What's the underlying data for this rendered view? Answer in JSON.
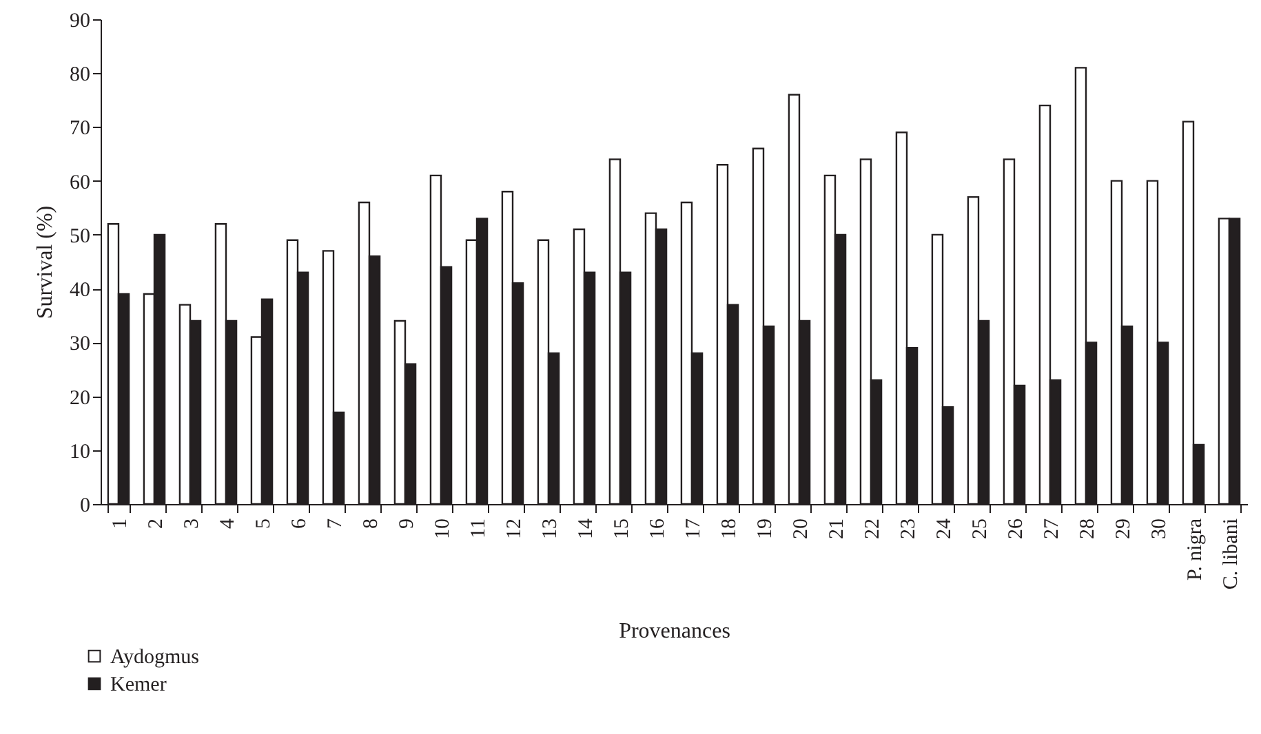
{
  "chart_data": {
    "type": "bar",
    "xlabel": "Provenances",
    "ylabel": "Survival (%)",
    "categories": [
      "1",
      "2",
      "3",
      "4",
      "5",
      "6",
      "7",
      "8",
      "9",
      "10",
      "11",
      "12",
      "13",
      "14",
      "15",
      "16",
      "17",
      "18",
      "19",
      "20",
      "21",
      "22",
      "23",
      "24",
      "25",
      "26",
      "27",
      "28",
      "29",
      "30",
      "P. nigra",
      "C. libani"
    ],
    "series": [
      {
        "name": "Aydogmus",
        "color": "#ffffff",
        "values": [
          52,
          39,
          37,
          52,
          31,
          49,
          47,
          56,
          34,
          61,
          49,
          58,
          49,
          51,
          64,
          54,
          56,
          63,
          66,
          76,
          61,
          64,
          69,
          50,
          57,
          64,
          74,
          81,
          60,
          60,
          71,
          53
        ]
      },
      {
        "name": "Kemer",
        "color": "#231f20",
        "values": [
          39,
          50,
          34,
          34,
          38,
          43,
          17,
          46,
          26,
          44,
          53,
          41,
          28,
          43,
          43,
          51,
          28,
          37,
          33,
          34,
          50,
          23,
          29,
          18,
          34,
          22,
          23,
          30,
          33,
          30,
          11,
          53
        ]
      }
    ],
    "ylim": [
      0,
      90
    ],
    "yticks": [
      0,
      10,
      20,
      30,
      40,
      50,
      60,
      70,
      80,
      90
    ],
    "grid": false,
    "legend": "bottom left"
  }
}
